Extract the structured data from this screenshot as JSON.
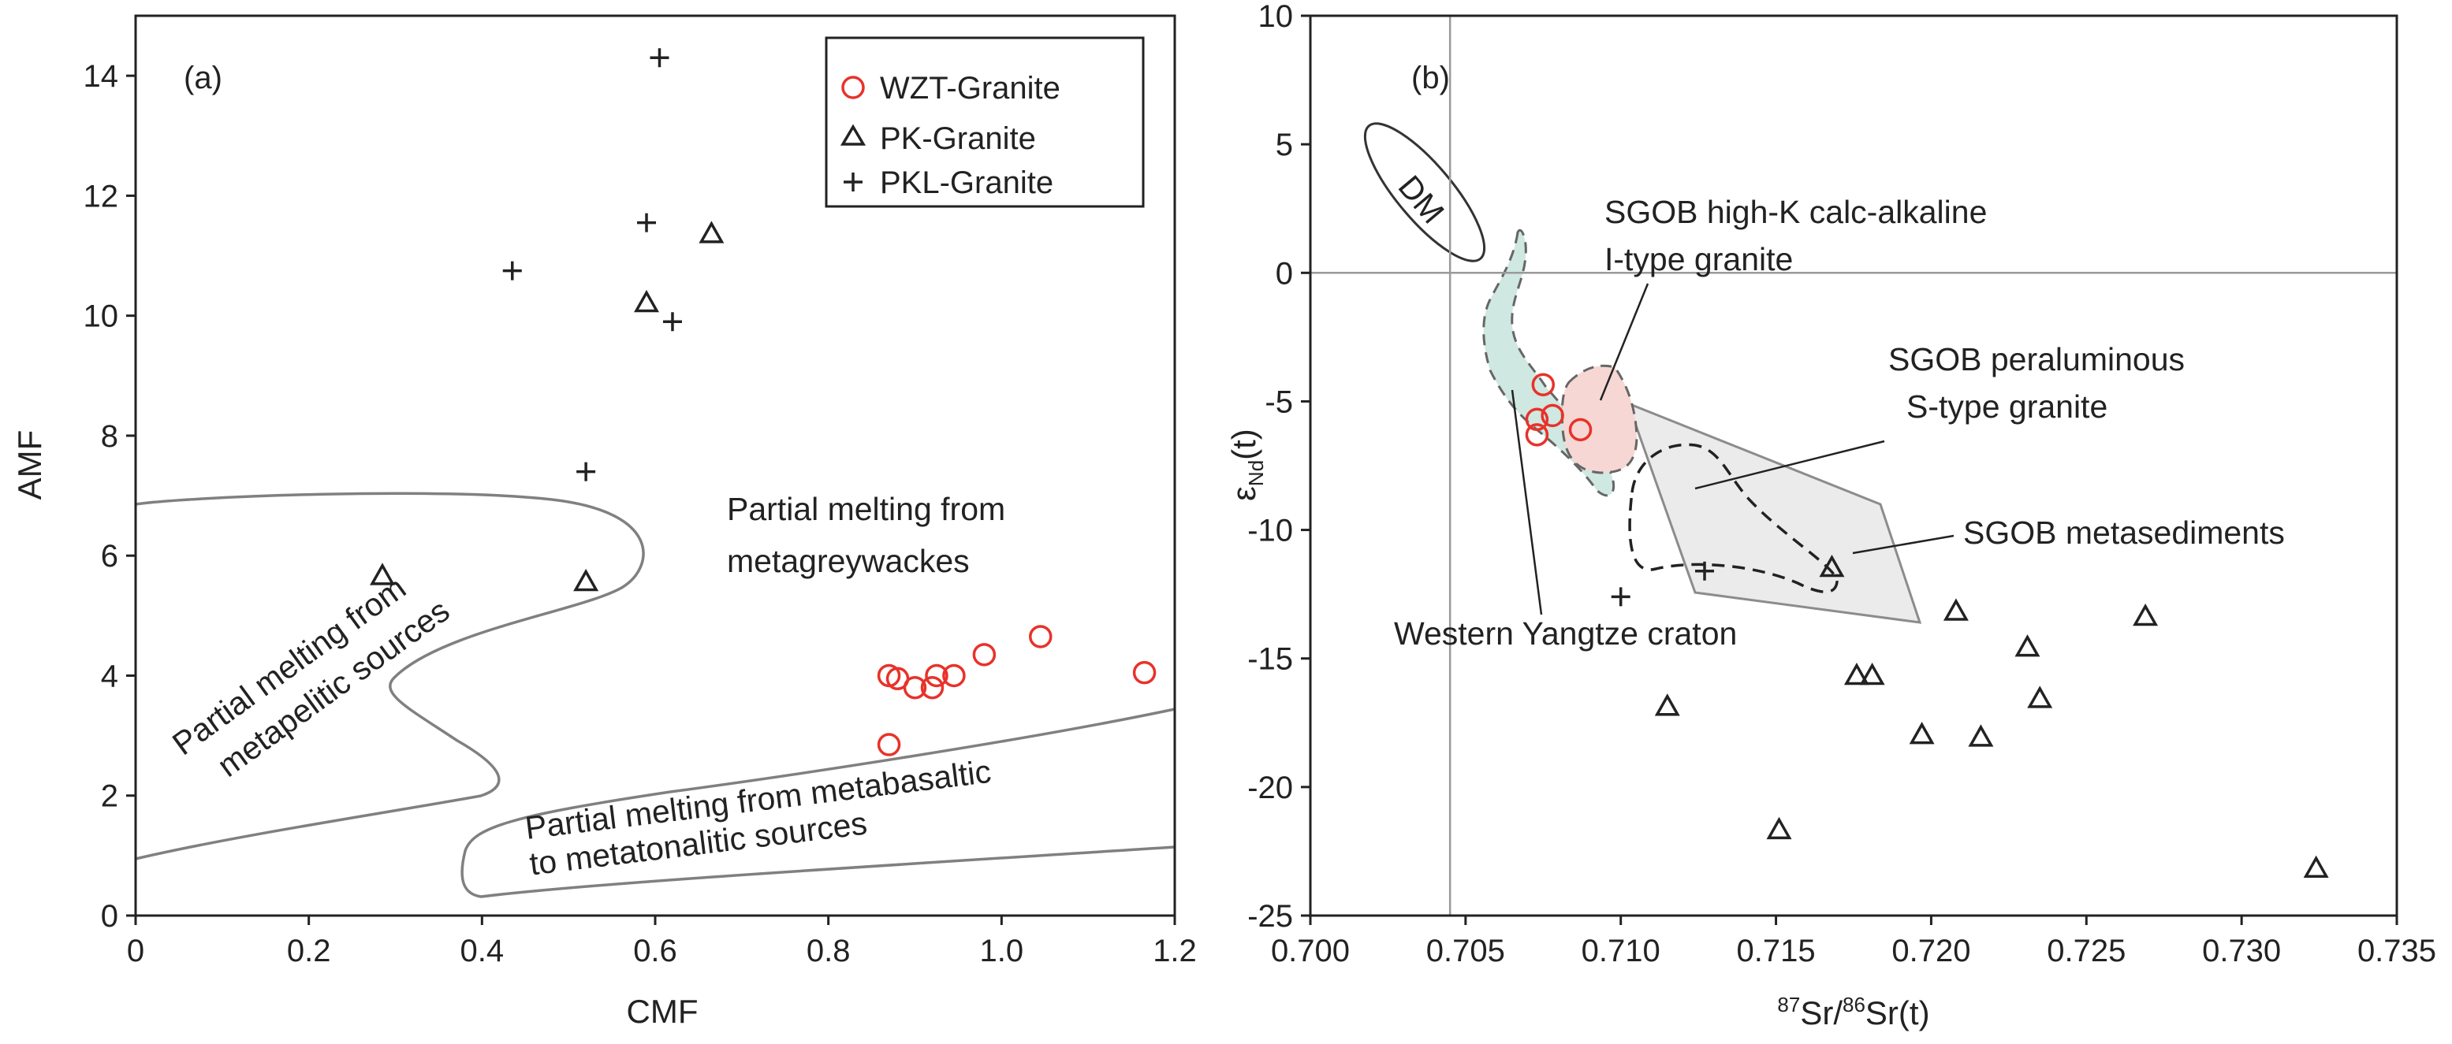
{
  "chart_data": [
    {
      "type": "scatter",
      "panel_label": "(a)",
      "xlabel": "CMF",
      "ylabel": "AMF",
      "xlim": [
        0,
        1.2
      ],
      "ylim": [
        0,
        15
      ],
      "xticks": [
        "0",
        "0.2",
        "0.4",
        "0.6",
        "0.8",
        "1.0",
        "1.2"
      ],
      "yticks": [
        "0",
        "2",
        "4",
        "6",
        "8",
        "10",
        "12",
        "14"
      ],
      "legend": {
        "position": "top-right",
        "entries": [
          "WZT-Granite",
          "PK-Granite",
          "PKL-Granite"
        ]
      },
      "series": [
        {
          "name": "WZT-Granite",
          "marker": "circle",
          "color": "#e8322a",
          "points": [
            [
              0.87,
              2.85
            ],
            [
              0.87,
              4.0
            ],
            [
              0.88,
              3.95
            ],
            [
              0.9,
              3.8
            ],
            [
              0.92,
              3.8
            ],
            [
              0.925,
              4.0
            ],
            [
              0.945,
              4.0
            ],
            [
              0.98,
              4.35
            ],
            [
              1.045,
              4.65
            ],
            [
              1.165,
              4.05
            ]
          ]
        },
        {
          "name": "PK-Granite",
          "marker": "triangle",
          "color": "#222222",
          "points": [
            [
              0.285,
              5.65
            ],
            [
              0.52,
              5.55
            ],
            [
              0.59,
              10.2
            ],
            [
              0.665,
              11.35
            ]
          ]
        },
        {
          "name": "PKL-Granite",
          "marker": "plus",
          "color": "#222222",
          "points": [
            [
              0.435,
              10.75
            ],
            [
              0.52,
              7.4
            ],
            [
              0.59,
              11.55
            ],
            [
              0.605,
              14.3
            ],
            [
              0.62,
              9.9
            ]
          ]
        }
      ],
      "fields": [
        "Partial melting from metapelitic sources",
        "Partial melting from metagreywackes",
        "Partial melting from metabasaltic to metatonalitic sources"
      ],
      "annotations": {
        "metapelitic": [
          "Partial melting from",
          "metapelitic sources"
        ],
        "metagreywacke": [
          "Partial melting from",
          "metagreywackes"
        ],
        "metabasaltic": [
          "Partial melting from metabasaltic",
          "to metatonalitic sources"
        ]
      }
    },
    {
      "type": "scatter",
      "panel_label": "(b)",
      "xlabel": "87Sr/86Sr(t)",
      "ylabel": "εNd(t)",
      "xlim": [
        0.7,
        0.735
      ],
      "ylim": [
        -25,
        10
      ],
      "xticks": [
        "0.700",
        "0.705",
        "0.710",
        "0.715",
        "0.720",
        "0.725",
        "0.730",
        "0.735"
      ],
      "yticks": [
        "10",
        "5",
        "0",
        "-5",
        "-10",
        "-15",
        "-20",
        "-25"
      ],
      "reference_lines": {
        "x": 0.7045,
        "y": 0
      },
      "series": [
        {
          "name": "WZT-Granite",
          "marker": "circle",
          "color": "#e8322a",
          "points": [
            [
              0.7075,
              -4.35
            ],
            [
              0.7073,
              -5.7
            ],
            [
              0.7078,
              -5.55
            ],
            [
              0.7073,
              -6.3
            ],
            [
              0.7087,
              -6.1
            ]
          ]
        },
        {
          "name": "PK-Granite",
          "marker": "triangle",
          "color": "#222222",
          "points": [
            [
              0.7168,
              -11.5
            ],
            [
              0.7115,
              -16.9
            ],
            [
              0.7151,
              -21.7
            ],
            [
              0.7176,
              -15.7
            ],
            [
              0.7181,
              -15.7
            ],
            [
              0.7197,
              -18.0
            ],
            [
              0.7208,
              -13.2
            ],
            [
              0.7216,
              -18.1
            ],
            [
              0.7231,
              -14.6
            ],
            [
              0.7235,
              -16.6
            ],
            [
              0.7269,
              -13.4
            ],
            [
              0.7324,
              -23.2
            ]
          ]
        },
        {
          "name": "PKL-Granite",
          "marker": "plus",
          "color": "#222222",
          "points": [
            [
              0.71,
              -12.6
            ],
            [
              0.7127,
              -11.6
            ]
          ]
        }
      ],
      "fields": [
        "DM",
        "SGOB high-K calc-alkaline I-type granite",
        "SGOB peraluminous S-type granite",
        "SGOB metasediments",
        "Western Yangtze craton"
      ],
      "annotations": {
        "dm": "DM",
        "sgob_ik": [
          "SGOB high-K calc-alkaline",
          "I-type granite"
        ],
        "sgob_s": [
          "SGOB peraluminous",
          "S-type granite"
        ],
        "sgob_meta": "SGOB metasediments",
        "western_yangtze": "Western Yangtze craton"
      },
      "xlabel_parts": {
        "sup1": "87",
        "a": "Sr/",
        "sup2": "86",
        "b": "Sr(t)"
      },
      "ylabel_parts": {
        "eps": "ε",
        "sub": "Nd",
        "rest": "(t)"
      }
    }
  ],
  "colors": {
    "wzt": "#e8322a",
    "black": "#222222",
    "field_outline": "#808080",
    "craton_fill": "#cfe8e1",
    "ik_fill": "#f6d7d3",
    "meta_fill": "#ebebeb"
  }
}
